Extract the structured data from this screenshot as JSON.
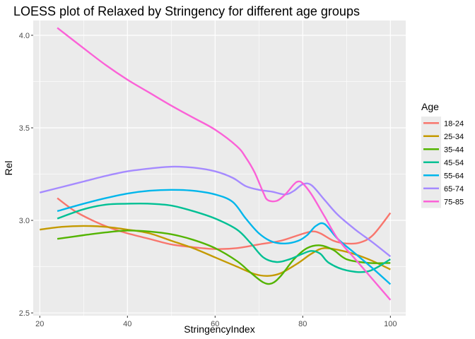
{
  "chart_data": {
    "type": "line",
    "title": "LOESS plot of Relaxed by Stringency for different age groups",
    "xlabel": "StringencyIndex",
    "ylabel": "Rel",
    "xlim": [
      18.5,
      103.5
    ],
    "ylim": [
      2.485,
      4.08
    ],
    "xticks": [
      20,
      40,
      60,
      80,
      100
    ],
    "yticks": [
      2.5,
      3.0,
      3.5,
      4.0
    ],
    "ytick_labels": [
      "2.5",
      "3.0",
      "3.5",
      "4.0"
    ],
    "grid": true,
    "legend": {
      "title": "Age",
      "position": "right"
    },
    "series": [
      {
        "name": "18-24",
        "color": "#F8766D",
        "points": [
          [
            24,
            3.12
          ],
          [
            28,
            3.05
          ],
          [
            32,
            3.0
          ],
          [
            36,
            2.96
          ],
          [
            40,
            2.93
          ],
          [
            45,
            2.9
          ],
          [
            50,
            2.87
          ],
          [
            55,
            2.855
          ],
          [
            60,
            2.845
          ],
          [
            65,
            2.85
          ],
          [
            70,
            2.87
          ],
          [
            75,
            2.89
          ],
          [
            79,
            2.92
          ],
          [
            82,
            2.94
          ],
          [
            84,
            2.93
          ],
          [
            87,
            2.89
          ],
          [
            90,
            2.875
          ],
          [
            93,
            2.88
          ],
          [
            96,
            2.92
          ],
          [
            100,
            3.04
          ]
        ]
      },
      {
        "name": "25-34",
        "color": "#C49A00",
        "points": [
          [
            20,
            2.95
          ],
          [
            25,
            2.965
          ],
          [
            30,
            2.97
          ],
          [
            35,
            2.965
          ],
          [
            40,
            2.95
          ],
          [
            45,
            2.93
          ],
          [
            50,
            2.89
          ],
          [
            55,
            2.85
          ],
          [
            60,
            2.8
          ],
          [
            65,
            2.75
          ],
          [
            69,
            2.71
          ],
          [
            72,
            2.7
          ],
          [
            75,
            2.715
          ],
          [
            79,
            2.77
          ],
          [
            82,
            2.82
          ],
          [
            85,
            2.85
          ],
          [
            90,
            2.83
          ],
          [
            95,
            2.79
          ],
          [
            100,
            2.735
          ]
        ]
      },
      {
        "name": "35-44",
        "color": "#53B400",
        "points": [
          [
            24,
            2.9
          ],
          [
            30,
            2.92
          ],
          [
            35,
            2.935
          ],
          [
            40,
            2.945
          ],
          [
            45,
            2.94
          ],
          [
            50,
            2.925
          ],
          [
            55,
            2.895
          ],
          [
            60,
            2.85
          ],
          [
            65,
            2.78
          ],
          [
            68,
            2.72
          ],
          [
            71,
            2.665
          ],
          [
            73,
            2.66
          ],
          [
            75,
            2.7
          ],
          [
            78,
            2.79
          ],
          [
            81,
            2.85
          ],
          [
            84,
            2.865
          ],
          [
            87,
            2.84
          ],
          [
            90,
            2.79
          ],
          [
            95,
            2.77
          ],
          [
            100,
            2.77
          ]
        ]
      },
      {
        "name": "45-54",
        "color": "#00C094",
        "points": [
          [
            24,
            3.01
          ],
          [
            30,
            3.06
          ],
          [
            35,
            3.085
          ],
          [
            40,
            3.09
          ],
          [
            45,
            3.09
          ],
          [
            50,
            3.08
          ],
          [
            55,
            3.05
          ],
          [
            60,
            3.01
          ],
          [
            65,
            2.95
          ],
          [
            68,
            2.88
          ],
          [
            71,
            2.8
          ],
          [
            74,
            2.775
          ],
          [
            77,
            2.79
          ],
          [
            80,
            2.82
          ],
          [
            82,
            2.835
          ],
          [
            84,
            2.82
          ],
          [
            86,
            2.77
          ],
          [
            90,
            2.73
          ],
          [
            95,
            2.725
          ],
          [
            100,
            2.79
          ]
        ]
      },
      {
        "name": "55-64",
        "color": "#00B6EB",
        "points": [
          [
            24,
            3.05
          ],
          [
            30,
            3.09
          ],
          [
            35,
            3.12
          ],
          [
            40,
            3.145
          ],
          [
            45,
            3.16
          ],
          [
            50,
            3.165
          ],
          [
            55,
            3.16
          ],
          [
            60,
            3.14
          ],
          [
            64,
            3.1
          ],
          [
            67,
            3.01
          ],
          [
            70,
            2.93
          ],
          [
            73,
            2.885
          ],
          [
            76,
            2.875
          ],
          [
            79,
            2.89
          ],
          [
            81,
            2.92
          ],
          [
            83,
            2.97
          ],
          [
            85,
            2.98
          ],
          [
            88,
            2.9
          ],
          [
            92,
            2.82
          ],
          [
            96,
            2.74
          ],
          [
            100,
            2.655
          ]
        ]
      },
      {
        "name": "65-74",
        "color": "#A58AFF",
        "points": [
          [
            20,
            3.15
          ],
          [
            25,
            3.18
          ],
          [
            30,
            3.21
          ],
          [
            35,
            3.24
          ],
          [
            40,
            3.265
          ],
          [
            45,
            3.28
          ],
          [
            50,
            3.29
          ],
          [
            55,
            3.285
          ],
          [
            60,
            3.265
          ],
          [
            64,
            3.23
          ],
          [
            67,
            3.185
          ],
          [
            70,
            3.165
          ],
          [
            73,
            3.155
          ],
          [
            76,
            3.14
          ],
          [
            78,
            3.16
          ],
          [
            80,
            3.195
          ],
          [
            82,
            3.19
          ],
          [
            85,
            3.11
          ],
          [
            88,
            3.03
          ],
          [
            92,
            2.95
          ],
          [
            96,
            2.88
          ],
          [
            100,
            2.805
          ]
        ]
      },
      {
        "name": "75-85",
        "color": "#FB61D7",
        "points": [
          [
            24,
            4.04
          ],
          [
            30,
            3.93
          ],
          [
            35,
            3.84
          ],
          [
            40,
            3.76
          ],
          [
            45,
            3.69
          ],
          [
            50,
            3.62
          ],
          [
            55,
            3.555
          ],
          [
            60,
            3.49
          ],
          [
            65,
            3.4
          ],
          [
            67,
            3.34
          ],
          [
            69,
            3.26
          ],
          [
            71,
            3.15
          ],
          [
            72,
            3.11
          ],
          [
            74,
            3.105
          ],
          [
            76,
            3.14
          ],
          [
            78,
            3.195
          ],
          [
            79,
            3.21
          ],
          [
            80,
            3.2
          ],
          [
            82,
            3.14
          ],
          [
            85,
            3.02
          ],
          [
            88,
            2.9
          ],
          [
            92,
            2.79
          ],
          [
            96,
            2.68
          ],
          [
            100,
            2.57
          ]
        ]
      }
    ]
  }
}
